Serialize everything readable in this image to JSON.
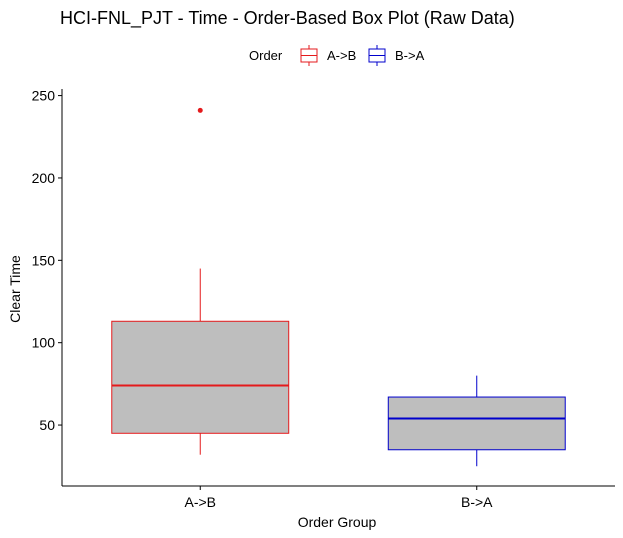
{
  "chart_data": {
    "type": "box",
    "title": "HCI-FNL_PJT - Time - Order-Based Box Plot (Raw Data)",
    "xlabel": "Order Group",
    "ylabel": "Clear Time",
    "ylim": [
      13,
      254
    ],
    "yticks": [
      50,
      100,
      150,
      200,
      250
    ],
    "categories": [
      "A->B",
      "B->A"
    ],
    "legend": {
      "title": "Order",
      "position": "top",
      "entries": [
        "A->B",
        "B->A"
      ]
    },
    "grid": false,
    "series": [
      {
        "category": "A->B",
        "whisker_low": 32,
        "q1": 45,
        "median": 74,
        "q3": 113,
        "whisker_high": 145,
        "outliers": [
          241
        ],
        "color": "#e41a1c",
        "fill": "#bebebe"
      },
      {
        "category": "B->A",
        "whisker_low": 25,
        "q1": 35,
        "median": 54,
        "q3": 67,
        "whisker_high": 80,
        "outliers": [],
        "color": "#0000cc",
        "fill": "#bebebe"
      }
    ]
  }
}
